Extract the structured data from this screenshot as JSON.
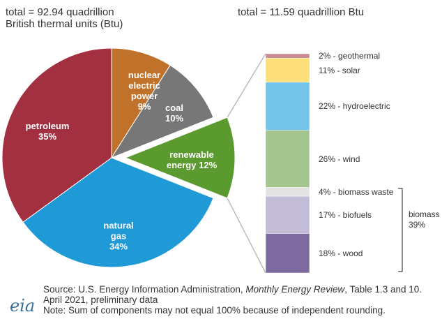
{
  "chart_data": [
    {
      "type": "pie",
      "title": "total = 92.94 quadrillion British thermal units (Btu)",
      "categories": [
        "nuclear electric power",
        "coal",
        "renewable energy",
        "natural gas",
        "petroleum"
      ],
      "values": [
        9,
        10,
        12,
        34,
        35
      ],
      "value_labels": [
        "9%",
        "10%",
        "12%",
        "34%",
        "35%"
      ],
      "colors": [
        "#c0722a",
        "#777777",
        "#5a9a2e",
        "#1f9ad6",
        "#a33040"
      ],
      "exploded": "renewable energy"
    },
    {
      "type": "bar",
      "stacked": true,
      "title": "total = 11.59 quadrillion Btu",
      "categories": [
        "renewable energy"
      ],
      "series": [
        {
          "name": "2% - geothermal",
          "color": "#c98a91",
          "values": [
            2
          ]
        },
        {
          "name": "11% - solar",
          "color": "#fddf7a",
          "values": [
            11
          ]
        },
        {
          "name": "22% - hydroelectric",
          "color": "#74c5e8",
          "values": [
            22
          ]
        },
        {
          "name": "26% - wind",
          "color": "#a5c58e",
          "values": [
            26
          ]
        },
        {
          "name": "4% - biomass waste",
          "color": "#e3e3e3",
          "values": [
            4
          ]
        },
        {
          "name": "17% - biofuels",
          "color": "#c3bcd6",
          "values": [
            17
          ]
        },
        {
          "name": "18% - wood",
          "color": "#7d6a9f",
          "values": [
            18
          ]
        }
      ],
      "annotations": [
        "biomass 39%"
      ]
    }
  ],
  "footer": {
    "source": [
      "Source: U.S. Energy Information Administration, ",
      "Monthly Energy Review",
      ", Table 1.3 and 10."
    ],
    "date": "April 2021, preliminary data",
    "note": "Note: Sum of components may not equal 100% because of independent rounding.",
    "logo": "eia"
  }
}
